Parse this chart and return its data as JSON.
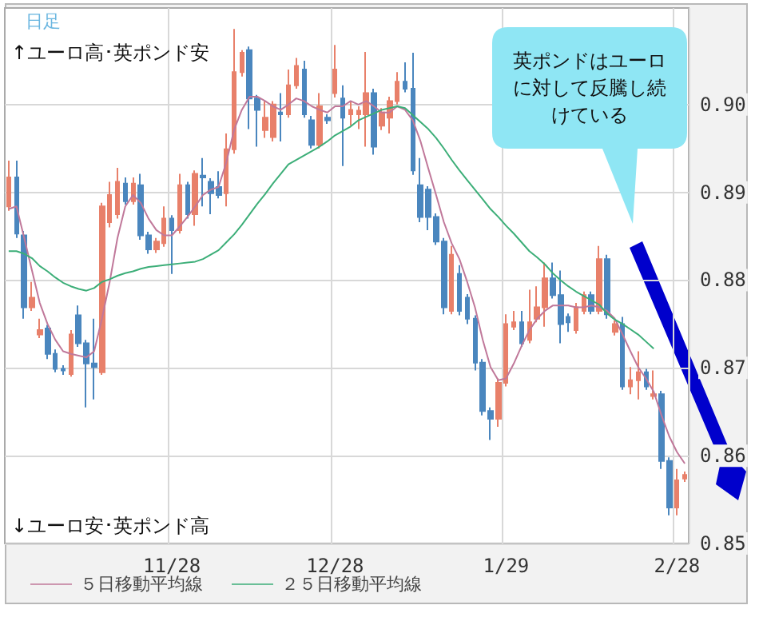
{
  "chart_data": {
    "type": "candlestick",
    "categories": [
      null,
      null,
      null,
      null,
      null,
      null,
      null,
      null,
      null,
      null,
      null,
      null,
      null,
      null,
      null,
      null,
      null,
      null,
      null,
      null,
      null,
      "11/28",
      null,
      null,
      null,
      null,
      null,
      null,
      null,
      null,
      null,
      null,
      null,
      null,
      null,
      null,
      null,
      null,
      null,
      null,
      null,
      null,
      "12/28",
      null,
      null,
      null,
      null,
      null,
      null,
      null,
      null,
      null,
      null,
      null,
      null,
      null,
      null,
      null,
      null,
      null,
      null,
      null,
      null,
      null,
      "1/29",
      null,
      null,
      null,
      null,
      null,
      null,
      null,
      null,
      null,
      null,
      null,
      null,
      null,
      null,
      null,
      null,
      null,
      null,
      null,
      null,
      null,
      "2/28",
      null
    ],
    "series": [
      {
        "colors": [
          "#e8806a",
          "#4a86be",
          "#4a86be",
          "#e8806a",
          "#e8806a",
          "#4a86be",
          "#4a86be",
          "#4a86be",
          "#e8806a",
          "#4a86be",
          "#4a86be",
          "#4a86be",
          "#e8806a",
          "#e8806a",
          "#e8806a",
          "#4a86be",
          "#e8806a",
          "#4a86be",
          "#4a86be",
          "#e8806a",
          "#e8806a",
          "#4a86be",
          "#e8806a",
          "#4a86be",
          "#e8806a",
          "#4a86be",
          "#4a86be",
          "#4a86be",
          "#e8806a",
          "#e8806a",
          "#e8806a",
          "#4a86be",
          "#4a86be",
          "#e8806a",
          "#e8806a",
          "#4a86be",
          "#e8806a",
          "#e8806a",
          "#4a86be",
          "#4a86be",
          "#e8806a",
          "#4a86be",
          "#e8806a",
          "#4a86be",
          "#e8806a",
          "#e8806a",
          "#e8806a",
          "#4a86be",
          "#e8806a",
          "#e8806a",
          "#e8806a",
          "#4a86be",
          "#4a86be",
          "#4a86be",
          "#4a86be",
          "#4a86be",
          "#4a86be",
          "#e8806a",
          "#4a86be",
          "#4a86be",
          "#4a86be",
          "#4a86be",
          "#4a86be",
          "#e8806a",
          "#e8806a",
          "#e8806a",
          "#4a86be",
          "#e8806a",
          "#e8806a",
          "#e8806a",
          "#4a86be",
          "#4a86be",
          "#4a86be",
          "#e8806a",
          "#e8806a",
          "#4a86be",
          "#e8806a",
          "#4a86be",
          "#e8806a",
          "#4a86be",
          "#e8806a",
          "#e8806a",
          "#4a86be",
          "#e8806a",
          "#4a86be",
          "#4a86be",
          "#e8806a",
          "#e8806a"
        ],
        "ohlc": [
          [
            0.8884,
            0.8936,
            0.8879,
            0.8917
          ],
          [
            0.8917,
            0.8936,
            0.8848,
            0.8853
          ],
          [
            0.8851,
            0.8856,
            0.8756,
            0.8769
          ],
          [
            0.8769,
            0.8798,
            0.8765,
            0.878
          ],
          [
            0.8738,
            0.8756,
            0.8734,
            0.8743
          ],
          [
            0.8745,
            0.8749,
            0.871,
            0.8716
          ],
          [
            0.8716,
            0.8721,
            0.8695,
            0.8699
          ],
          [
            0.8699,
            0.8703,
            0.8692,
            0.8697
          ],
          [
            0.8693,
            0.8743,
            0.869,
            0.8738
          ],
          [
            0.876,
            0.8771,
            0.8724,
            0.8728
          ],
          [
            0.8728,
            0.8732,
            0.8655,
            0.8705
          ],
          [
            0.8705,
            0.8756,
            0.8664,
            0.8701
          ],
          [
            0.8695,
            0.8888,
            0.8692,
            0.8884
          ],
          [
            0.8866,
            0.8912,
            0.886,
            0.8897
          ],
          [
            0.8875,
            0.8928,
            0.887,
            0.8912
          ],
          [
            0.891,
            0.8917,
            0.8886,
            0.889
          ],
          [
            0.889,
            0.8917,
            0.8886,
            0.891
          ],
          [
            0.8908,
            0.8921,
            0.8846,
            0.8851
          ],
          [
            0.8851,
            0.8855,
            0.883,
            0.8835
          ],
          [
            0.8835,
            0.8848,
            0.8831,
            0.8844
          ],
          [
            0.8842,
            0.8884,
            0.8838,
            0.887
          ],
          [
            0.887,
            0.8874,
            0.8807,
            0.8857
          ],
          [
            0.8857,
            0.8921,
            0.8853,
            0.8908
          ],
          [
            0.8908,
            0.8912,
            0.887,
            0.8875
          ],
          [
            0.8875,
            0.8925,
            0.8862,
            0.8921
          ],
          [
            0.8919,
            0.8939,
            0.8884,
            0.8917
          ],
          [
            0.8912,
            0.8916,
            0.8875,
            0.8899
          ],
          [
            0.8906,
            0.8924,
            0.8893,
            0.8897
          ],
          [
            0.8899,
            0.8967,
            0.8884,
            0.8949
          ],
          [
            0.8949,
            0.9086,
            0.8944,
            0.9037
          ],
          [
            0.9037,
            0.9062,
            0.9032,
            0.9059
          ],
          [
            0.9062,
            0.9066,
            0.8972,
            0.9007
          ],
          [
            0.9007,
            0.9011,
            0.8952,
            0.8994
          ],
          [
            0.8971,
            0.9004,
            0.8962,
            0.8985
          ],
          [
            0.8963,
            0.9004,
            0.8958,
            0.9
          ],
          [
            0.8991,
            0.9013,
            0.8958,
            0.8989
          ],
          [
            0.8989,
            0.904,
            0.8985,
            0.9022
          ],
          [
            0.9022,
            0.9053,
            0.9018,
            0.9044
          ],
          [
            0.904,
            0.905,
            0.8985,
            0.8989
          ],
          [
            0.8982,
            0.8987,
            0.895,
            0.8954
          ],
          [
            0.8954,
            0.9013,
            0.895,
            0.8998
          ],
          [
            0.8985,
            0.8989,
            0.8978,
            0.8982
          ],
          [
            0.9013,
            0.9068,
            0.9008,
            0.904
          ],
          [
            0.9007,
            0.9022,
            0.893,
            0.8985
          ],
          [
            0.8989,
            0.9004,
            0.8976,
            0.8994
          ],
          [
            0.8989,
            0.8998,
            0.8972,
            0.8993
          ],
          [
            0.8989,
            0.906,
            0.8952,
            0.9013
          ],
          [
            0.9013,
            0.9018,
            0.8943,
            0.8952
          ],
          [
            0.8976,
            0.8996,
            0.8971,
            0.8991
          ],
          [
            0.8985,
            0.9009,
            0.8967,
            0.9004
          ],
          [
            0.9004,
            0.9037,
            0.9,
            0.9026
          ],
          [
            0.9026,
            0.9048,
            0.9014,
            0.9018
          ],
          [
            0.9018,
            0.9059,
            0.892,
            0.8925
          ],
          [
            0.8908,
            0.8939,
            0.8866,
            0.8872
          ],
          [
            0.8903,
            0.8907,
            0.8857,
            0.8872
          ],
          [
            0.8872,
            0.8876,
            0.884,
            0.8844
          ],
          [
            0.8844,
            0.8848,
            0.8761,
            0.8769
          ],
          [
            0.8765,
            0.8839,
            0.8761,
            0.8829
          ],
          [
            0.8807,
            0.8817,
            0.876,
            0.8765
          ],
          [
            0.878,
            0.8784,
            0.875,
            0.8756
          ],
          [
            0.8756,
            0.876,
            0.8697,
            0.8706
          ],
          [
            0.8706,
            0.871,
            0.8646,
            0.8651
          ],
          [
            0.8651,
            0.8655,
            0.8618,
            0.8642
          ],
          [
            0.8642,
            0.8688,
            0.8633,
            0.8683
          ],
          [
            0.8683,
            0.8761,
            0.8679,
            0.875
          ],
          [
            0.8747,
            0.8765,
            0.8743,
            0.8752
          ],
          [
            0.8752,
            0.8765,
            0.8724,
            0.8728
          ],
          [
            0.8732,
            0.8789,
            0.8728,
            0.8752
          ],
          [
            0.8756,
            0.8793,
            0.8752,
            0.8769
          ],
          [
            0.8769,
            0.882,
            0.8747,
            0.8802
          ],
          [
            0.8802,
            0.882,
            0.8779,
            0.8783
          ],
          [
            0.8783,
            0.8811,
            0.8728,
            0.875
          ],
          [
            0.8758,
            0.8762,
            0.8741,
            0.8752
          ],
          [
            0.8743,
            0.8774,
            0.8739,
            0.8769
          ],
          [
            0.8765,
            0.8787,
            0.8761,
            0.8783
          ],
          [
            0.8783,
            0.8787,
            0.8761,
            0.8765
          ],
          [
            0.8765,
            0.8839,
            0.8761,
            0.8824
          ],
          [
            0.8824,
            0.8829,
            0.8756,
            0.8761
          ],
          [
            0.8741,
            0.8754,
            0.8737,
            0.875
          ],
          [
            0.875,
            0.8758,
            0.8675,
            0.8679
          ],
          [
            0.8679,
            0.8701,
            0.867,
            0.8686
          ],
          [
            0.8686,
            0.8719,
            0.8664,
            0.8695
          ],
          [
            0.8695,
            0.8699,
            0.8675,
            0.8679
          ],
          [
            0.8668,
            0.8697,
            0.8664,
            0.867
          ],
          [
            0.867,
            0.8674,
            0.8585,
            0.8594
          ],
          [
            0.8594,
            0.8598,
            0.8532,
            0.8541
          ],
          [
            0.8541,
            0.8585,
            0.8532,
            0.8572
          ],
          [
            0.8574,
            0.8582,
            0.857,
            0.8578
          ]
        ]
      },
      {
        "type": "line",
        "name": "５日移動平均線",
        "color": "#c0789a",
        "values": [
          0.8881,
          0.8884,
          0.8848,
          0.8811,
          0.8774,
          0.875,
          0.8732,
          0.8719,
          0.8716,
          0.8714,
          0.8712,
          0.8719,
          0.8756,
          0.8798,
          0.8848,
          0.8884,
          0.8897,
          0.8888,
          0.887,
          0.8857,
          0.8851,
          0.8851,
          0.8861,
          0.8872,
          0.8884,
          0.8897,
          0.8903,
          0.8906,
          0.8934,
          0.8971,
          0.8994,
          0.9009,
          0.9009,
          0.9004,
          0.8998,
          0.8994,
          0.9,
          0.9007,
          0.9004,
          0.8998,
          0.8994,
          0.8991,
          0.8998,
          0.8998,
          0.9004,
          0.9,
          0.9004,
          0.8998,
          0.8991,
          0.8991,
          0.8998,
          0.8994,
          0.8982,
          0.8958,
          0.8927,
          0.8897,
          0.8866,
          0.8842,
          0.8824,
          0.8798,
          0.8769,
          0.8732,
          0.8701,
          0.8686,
          0.8688,
          0.8705,
          0.8725,
          0.8743,
          0.8756,
          0.8765,
          0.8771,
          0.8771,
          0.8771,
          0.8769,
          0.8769,
          0.8771,
          0.8769,
          0.8765,
          0.8756,
          0.8738,
          0.8719,
          0.8701,
          0.8688,
          0.8673,
          0.8646,
          0.8622,
          0.8604,
          0.8591
        ]
      },
      {
        "type": "line",
        "name": "２５日移動平均線",
        "color": "#3cae78",
        "values": [
          0.8833,
          0.8833,
          0.883,
          0.8825,
          0.8816,
          0.881,
          0.8803,
          0.8797,
          0.8793,
          0.879,
          0.8788,
          0.8791,
          0.8798,
          0.8801,
          0.8805,
          0.8808,
          0.881,
          0.8813,
          0.8815,
          0.8816,
          0.8817,
          0.8818,
          0.8819,
          0.882,
          0.8821,
          0.8824,
          0.8829,
          0.8834,
          0.8843,
          0.8852,
          0.8863,
          0.8875,
          0.8887,
          0.8898,
          0.891,
          0.8921,
          0.8932,
          0.8937,
          0.8942,
          0.8947,
          0.8952,
          0.8958,
          0.8965,
          0.897,
          0.8975,
          0.8982,
          0.8986,
          0.899,
          0.8994,
          0.8996,
          0.8998,
          0.8996,
          0.8988,
          0.898,
          0.8972,
          0.8962,
          0.895,
          0.8937,
          0.8925,
          0.8914,
          0.8903,
          0.8892,
          0.8881,
          0.8872,
          0.8862,
          0.8853,
          0.8843,
          0.8833,
          0.8826,
          0.8818,
          0.8808,
          0.88,
          0.8793,
          0.8787,
          0.8782,
          0.8777,
          0.8772,
          0.8762,
          0.8755,
          0.875,
          0.8744,
          0.8738,
          0.873,
          0.8722,
          null,
          null,
          null,
          null
        ]
      }
    ],
    "ylim": [
      0.85,
      0.911
    ],
    "yticks": [
      {
        "value": 0.85,
        "label": "0.85"
      },
      {
        "value": 0.86,
        "label": "0.86"
      },
      {
        "value": 0.87,
        "label": "0.87"
      },
      {
        "value": 0.88,
        "label": "0.88"
      },
      {
        "value": 0.89,
        "label": "0.89"
      },
      {
        "value": 0.9,
        "label": "0.90"
      }
    ],
    "grid": true,
    "legend": "bottom",
    "marker": "none",
    "annotations": [
      "日足",
      "↑ユーロ高･英ポンド安",
      "↓ユーロ安･英ポンド高",
      "英ポンドはユーロに対して反騰し続けている"
    ]
  }
}
